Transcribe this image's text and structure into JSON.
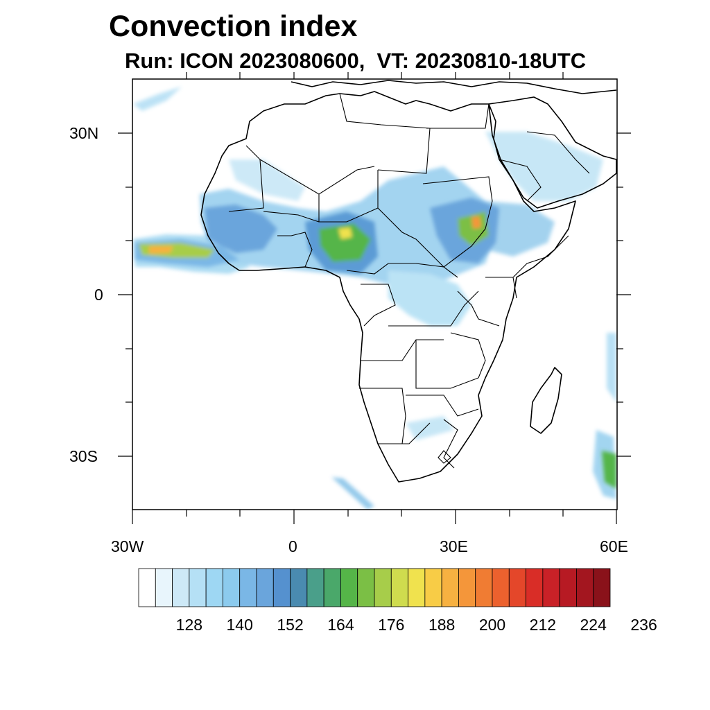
{
  "title": "Convection index",
  "subtitle": "Run: ICON 2023080600,  VT: 20230810-18UTC",
  "map": {
    "region": "Africa",
    "projection": "cylindrical equidistant",
    "lon_range": [
      -30,
      60
    ],
    "lat_range": [
      -40,
      40
    ],
    "x_ticks": [
      {
        "lon": -30,
        "label": "30W"
      },
      {
        "lon": 0,
        "label": "0"
      },
      {
        "lon": 30,
        "label": "30E"
      },
      {
        "lon": 60,
        "label": "60E"
      }
    ],
    "y_ticks": [
      {
        "lat": 30,
        "label": "30N"
      },
      {
        "lat": 0,
        "label": "0"
      },
      {
        "lat": -30,
        "label": "30S"
      }
    ]
  },
  "colorbar": {
    "labels": [
      "128",
      "140",
      "152",
      "164",
      "176",
      "188",
      "200",
      "212",
      "224",
      "236"
    ],
    "colors": [
      "#ffffff",
      "#e8f5fc",
      "#cde9f7",
      "#b5e0f5",
      "#9ed7f3",
      "#8ccbee",
      "#7ab7e6",
      "#6aa5dc",
      "#5591cf",
      "#4a8bb0",
      "#4a9f8a",
      "#4aa86a",
      "#55b548",
      "#7bbf45",
      "#a7cd4a",
      "#cfdc4e",
      "#f0e24e",
      "#f8cc46",
      "#f7b141",
      "#f4963a",
      "#f07c33",
      "#ec612e",
      "#e4472a",
      "#d92d27",
      "#c92127",
      "#b71a23",
      "#a3161f",
      "#8a121a"
    ]
  }
}
